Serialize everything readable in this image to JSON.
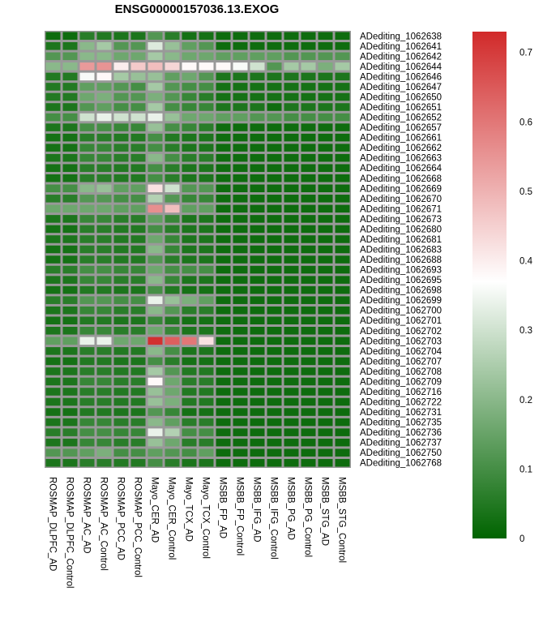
{
  "chart_data": {
    "type": "heatmap",
    "title": "ENSG00000157036.13.EXOG",
    "columns": [
      "ROSMAP_DLPFC_AD",
      "ROSMAP_DLPFC_Control",
      "ROSMAP_AC_AD",
      "ROSMAP_AC_Control",
      "ROSMAP_PCC_AD",
      "ROSMAP_PCC_Control",
      "Mayo_CER_AD",
      "Mayo_CER_Control",
      "Mayo_TCX_AD",
      "Mayo_TCX_Control",
      "MSBB_FP_AD",
      "MSBB_FP_Control",
      "MSBB_IFG_AD",
      "MSBB_IFG_Control",
      "MSBB_PG_AD",
      "MSBB_PG_Control",
      "MSBB_STG_AD",
      "MSBB_STG_Control"
    ],
    "rows": [
      "ADediting_1062638",
      "ADediting_1062641",
      "ADediting_1062642",
      "ADediting_1062644",
      "ADediting_1062646",
      "ADediting_1062647",
      "ADediting_1062650",
      "ADediting_1062651",
      "ADediting_1062652",
      "ADediting_1062657",
      "ADediting_1062661",
      "ADediting_1062662",
      "ADediting_1062663",
      "ADediting_1062664",
      "ADediting_1062668",
      "ADediting_1062669",
      "ADediting_1062670",
      "ADediting_1062671",
      "ADediting_1062673",
      "ADediting_1062680",
      "ADediting_1062681",
      "ADediting_1062683",
      "ADediting_1062688",
      "ADediting_1062693",
      "ADediting_1062695",
      "ADediting_1062698",
      "ADediting_1062699",
      "ADediting_1062700",
      "ADediting_1062701",
      "ADediting_1062702",
      "ADediting_1062703",
      "ADediting_1062704",
      "ADediting_1062707",
      "ADediting_1062708",
      "ADediting_1062709",
      "ADediting_1062716",
      "ADediting_1062722",
      "ADediting_1062731",
      "ADediting_1062735",
      "ADediting_1062736",
      "ADediting_1062737",
      "ADediting_1062750",
      "ADediting_1062768"
    ],
    "values": [
      [
        0.02,
        0.02,
        0.06,
        0.05,
        0.04,
        0.04,
        0.12,
        0.06,
        0.03,
        0.03,
        0.02,
        0.02,
        0.02,
        0.02,
        0.02,
        0.02,
        0.02,
        0.02
      ],
      [
        0.04,
        0.04,
        0.2,
        0.24,
        0.12,
        0.12,
        0.32,
        0.22,
        0.14,
        0.12,
        0.02,
        0.02,
        0.02,
        0.02,
        0.02,
        0.02,
        0.02,
        0.02
      ],
      [
        0.12,
        0.12,
        0.2,
        0.2,
        0.16,
        0.16,
        0.24,
        0.2,
        0.16,
        0.16,
        0.14,
        0.14,
        0.14,
        0.14,
        0.12,
        0.12,
        0.12,
        0.12
      ],
      [
        0.2,
        0.2,
        0.54,
        0.55,
        0.4,
        0.46,
        0.48,
        0.44,
        0.38,
        0.38,
        0.38,
        0.36,
        0.3,
        0.12,
        0.24,
        0.24,
        0.18,
        0.24
      ],
      [
        0.05,
        0.05,
        0.36,
        0.38,
        0.24,
        0.22,
        0.22,
        0.14,
        0.16,
        0.12,
        0.04,
        0.04,
        0.04,
        0.04,
        0.04,
        0.04,
        0.04,
        0.04
      ],
      [
        0.05,
        0.05,
        0.14,
        0.14,
        0.12,
        0.1,
        0.24,
        0.12,
        0.1,
        0.1,
        0.03,
        0.03,
        0.03,
        0.03,
        0.03,
        0.03,
        0.03,
        0.03
      ],
      [
        0.05,
        0.05,
        0.16,
        0.18,
        0.12,
        0.12,
        0.18,
        0.12,
        0.08,
        0.06,
        0.03,
        0.03,
        0.03,
        0.03,
        0.03,
        0.03,
        0.03,
        0.03
      ],
      [
        0.04,
        0.04,
        0.12,
        0.14,
        0.1,
        0.1,
        0.24,
        0.1,
        0.08,
        0.08,
        0.04,
        0.04,
        0.04,
        0.02,
        0.04,
        0.04,
        0.04,
        0.04
      ],
      [
        0.1,
        0.1,
        0.3,
        0.34,
        0.3,
        0.3,
        0.34,
        0.22,
        0.16,
        0.16,
        0.14,
        0.14,
        0.12,
        0.12,
        0.1,
        0.1,
        0.1,
        0.1
      ],
      [
        0.04,
        0.04,
        0.1,
        0.1,
        0.08,
        0.08,
        0.22,
        0.1,
        0.08,
        0.06,
        0.02,
        0.02,
        0.02,
        0.02,
        0.02,
        0.02,
        0.02,
        0.02
      ],
      [
        0.03,
        0.03,
        0.06,
        0.06,
        0.05,
        0.05,
        0.1,
        0.05,
        0.04,
        0.04,
        0.02,
        0.02,
        0.02,
        0.02,
        0.02,
        0.02,
        0.02,
        0.02
      ],
      [
        0.03,
        0.03,
        0.08,
        0.08,
        0.06,
        0.06,
        0.1,
        0.06,
        0.04,
        0.04,
        0.02,
        0.02,
        0.02,
        0.02,
        0.02,
        0.02,
        0.02,
        0.02
      ],
      [
        0.04,
        0.04,
        0.08,
        0.08,
        0.06,
        0.06,
        0.2,
        0.1,
        0.06,
        0.06,
        0.02,
        0.02,
        0.02,
        0.02,
        0.02,
        0.02,
        0.02,
        0.02
      ],
      [
        0.03,
        0.03,
        0.06,
        0.06,
        0.05,
        0.05,
        0.1,
        0.06,
        0.04,
        0.04,
        0.02,
        0.02,
        0.02,
        0.02,
        0.02,
        0.02,
        0.02,
        0.02
      ],
      [
        0.03,
        0.03,
        0.06,
        0.06,
        0.05,
        0.05,
        0.1,
        0.06,
        0.04,
        0.04,
        0.02,
        0.02,
        0.02,
        0.02,
        0.02,
        0.02,
        0.02,
        0.02
      ],
      [
        0.1,
        0.1,
        0.2,
        0.22,
        0.14,
        0.14,
        0.42,
        0.3,
        0.12,
        0.12,
        0.02,
        0.02,
        0.02,
        0.02,
        0.02,
        0.02,
        0.02,
        0.02
      ],
      [
        0.06,
        0.06,
        0.12,
        0.12,
        0.1,
        0.1,
        0.26,
        0.12,
        0.08,
        0.08,
        0.02,
        0.02,
        0.02,
        0.02,
        0.02,
        0.02,
        0.02,
        0.02
      ],
      [
        0.16,
        0.16,
        0.16,
        0.16,
        0.14,
        0.14,
        0.56,
        0.48,
        0.14,
        0.14,
        0.02,
        0.02,
        0.02,
        0.02,
        0.02,
        0.02,
        0.02,
        0.02
      ],
      [
        0.04,
        0.04,
        0.08,
        0.08,
        0.06,
        0.06,
        0.14,
        0.08,
        0.04,
        0.04,
        0.02,
        0.02,
        0.02,
        0.02,
        0.02,
        0.02,
        0.02,
        0.02
      ],
      [
        0.03,
        0.03,
        0.06,
        0.06,
        0.05,
        0.05,
        0.1,
        0.06,
        0.04,
        0.04,
        0.02,
        0.02,
        0.02,
        0.02,
        0.02,
        0.02,
        0.02,
        0.02
      ],
      [
        0.04,
        0.04,
        0.06,
        0.06,
        0.05,
        0.05,
        0.16,
        0.08,
        0.04,
        0.04,
        0.02,
        0.02,
        0.02,
        0.02,
        0.02,
        0.02,
        0.02,
        0.02
      ],
      [
        0.03,
        0.03,
        0.06,
        0.06,
        0.05,
        0.05,
        0.2,
        0.08,
        0.04,
        0.04,
        0.02,
        0.02,
        0.02,
        0.02,
        0.02,
        0.02,
        0.02,
        0.02
      ],
      [
        0.03,
        0.03,
        0.06,
        0.06,
        0.05,
        0.05,
        0.12,
        0.06,
        0.04,
        0.04,
        0.02,
        0.02,
        0.02,
        0.02,
        0.02,
        0.02,
        0.02,
        0.02
      ],
      [
        0.06,
        0.06,
        0.1,
        0.1,
        0.08,
        0.08,
        0.16,
        0.1,
        0.1,
        0.1,
        0.02,
        0.02,
        0.02,
        0.02,
        0.02,
        0.02,
        0.02,
        0.02
      ],
      [
        0.04,
        0.04,
        0.08,
        0.08,
        0.06,
        0.06,
        0.2,
        0.08,
        0.04,
        0.04,
        0.02,
        0.02,
        0.02,
        0.02,
        0.02,
        0.02,
        0.02,
        0.02
      ],
      [
        0.03,
        0.03,
        0.05,
        0.05,
        0.04,
        0.04,
        0.1,
        0.05,
        0.03,
        0.03,
        0.02,
        0.02,
        0.02,
        0.02,
        0.02,
        0.02,
        0.02,
        0.02
      ],
      [
        0.06,
        0.06,
        0.12,
        0.12,
        0.1,
        0.1,
        0.34,
        0.22,
        0.18,
        0.14,
        0.02,
        0.02,
        0.02,
        0.02,
        0.02,
        0.02,
        0.02,
        0.02
      ],
      [
        0.04,
        0.04,
        0.08,
        0.08,
        0.06,
        0.06,
        0.2,
        0.12,
        0.06,
        0.06,
        0.02,
        0.02,
        0.02,
        0.02,
        0.02,
        0.02,
        0.02,
        0.02
      ],
      [
        0.03,
        0.03,
        0.05,
        0.05,
        0.04,
        0.04,
        0.08,
        0.05,
        0.03,
        0.03,
        0.02,
        0.02,
        0.02,
        0.02,
        0.02,
        0.02,
        0.02,
        0.02
      ],
      [
        0.04,
        0.04,
        0.08,
        0.08,
        0.06,
        0.06,
        0.16,
        0.08,
        0.04,
        0.04,
        0.02,
        0.02,
        0.02,
        0.02,
        0.02,
        0.02,
        0.02,
        0.02
      ],
      [
        0.14,
        0.14,
        0.34,
        0.34,
        0.16,
        0.16,
        0.72,
        0.64,
        0.6,
        0.42,
        0.02,
        0.02,
        0.02,
        0.02,
        0.02,
        0.02,
        0.02,
        0.02
      ],
      [
        0.04,
        0.04,
        0.06,
        0.06,
        0.05,
        0.05,
        0.2,
        0.1,
        0.04,
        0.04,
        0.02,
        0.02,
        0.02,
        0.02,
        0.02,
        0.02,
        0.02,
        0.02
      ],
      [
        0.03,
        0.03,
        0.05,
        0.05,
        0.04,
        0.04,
        0.1,
        0.06,
        0.03,
        0.03,
        0.02,
        0.02,
        0.02,
        0.02,
        0.02,
        0.02,
        0.02,
        0.02
      ],
      [
        0.04,
        0.04,
        0.06,
        0.06,
        0.05,
        0.05,
        0.24,
        0.12,
        0.05,
        0.05,
        0.02,
        0.02,
        0.02,
        0.02,
        0.02,
        0.02,
        0.02,
        0.02
      ],
      [
        0.04,
        0.04,
        0.08,
        0.08,
        0.06,
        0.06,
        0.38,
        0.16,
        0.06,
        0.06,
        0.02,
        0.02,
        0.02,
        0.02,
        0.02,
        0.02,
        0.02,
        0.02
      ],
      [
        0.04,
        0.04,
        0.06,
        0.06,
        0.05,
        0.05,
        0.22,
        0.16,
        0.05,
        0.05,
        0.02,
        0.02,
        0.02,
        0.02,
        0.02,
        0.02,
        0.02,
        0.02
      ],
      [
        0.04,
        0.04,
        0.06,
        0.06,
        0.05,
        0.05,
        0.22,
        0.18,
        0.05,
        0.05,
        0.02,
        0.02,
        0.02,
        0.02,
        0.02,
        0.02,
        0.02,
        0.02
      ],
      [
        0.03,
        0.03,
        0.05,
        0.05,
        0.04,
        0.04,
        0.12,
        0.08,
        0.03,
        0.03,
        0.02,
        0.02,
        0.02,
        0.02,
        0.02,
        0.02,
        0.02,
        0.02
      ],
      [
        0.04,
        0.04,
        0.08,
        0.08,
        0.06,
        0.06,
        0.2,
        0.14,
        0.06,
        0.06,
        0.02,
        0.02,
        0.02,
        0.02,
        0.02,
        0.02,
        0.02,
        0.02
      ],
      [
        0.06,
        0.06,
        0.1,
        0.1,
        0.08,
        0.08,
        0.34,
        0.26,
        0.1,
        0.1,
        0.02,
        0.02,
        0.02,
        0.02,
        0.02,
        0.02,
        0.02,
        0.02
      ],
      [
        0.04,
        0.04,
        0.08,
        0.08,
        0.06,
        0.06,
        0.22,
        0.16,
        0.06,
        0.06,
        0.02,
        0.02,
        0.02,
        0.02,
        0.02,
        0.02,
        0.02,
        0.02
      ],
      [
        0.12,
        0.12,
        0.14,
        0.18,
        0.1,
        0.1,
        0.14,
        0.12,
        0.1,
        0.14,
        0.02,
        0.02,
        0.02,
        0.02,
        0.02,
        0.02,
        0.02,
        0.02
      ],
      [
        0.04,
        0.04,
        0.06,
        0.06,
        0.05,
        0.05,
        0.1,
        0.06,
        0.04,
        0.04,
        0.02,
        0.02,
        0.02,
        0.02,
        0.02,
        0.02,
        0.02,
        0.02
      ]
    ],
    "color_scale": {
      "min": 0,
      "max": 0.73,
      "mid": 0.37,
      "low_color": "#006400",
      "mid_color": "#ffffff",
      "high_color": "#d12a2a",
      "ticks": [
        0,
        0.1,
        0.2,
        0.3,
        0.4,
        0.5,
        0.6,
        0.7
      ],
      "tick_labels": [
        "0",
        "0.1",
        "0.2",
        "0.3",
        "0.4",
        "0.5",
        "0.6",
        "0.7"
      ]
    },
    "grid_color": "#999999",
    "legend_position": "right"
  }
}
